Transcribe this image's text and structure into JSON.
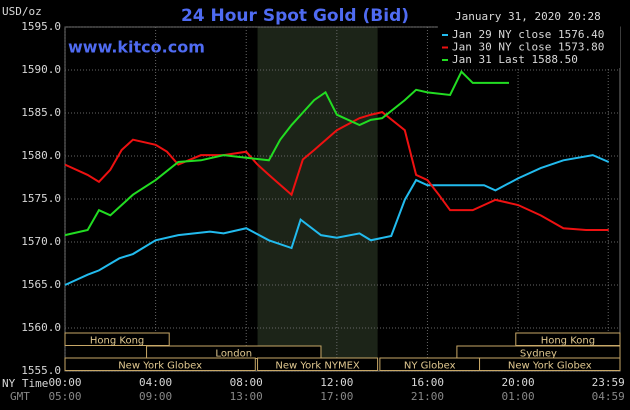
{
  "chart_data": {
    "type": "line",
    "title": "24 Hour Spot Gold (Bid)",
    "subtitle": "www.kitco.com",
    "timestamp": "January 31, 2020 20:28",
    "y_label": "USD/oz",
    "x_axis_labels": [
      "NY Time",
      "GMT"
    ],
    "xlim": [
      0,
      24.5
    ],
    "xticks": [
      {
        "value": 0,
        "label": "00:00"
      },
      {
        "value": 4,
        "label": "04:00"
      },
      {
        "value": 8,
        "label": "08:00"
      },
      {
        "value": 12,
        "label": "12:00"
      },
      {
        "value": 16,
        "label": "16:00"
      },
      {
        "value": 20,
        "label": "20:00"
      },
      {
        "value": 23.98,
        "label": "23:59"
      }
    ],
    "gmt_labels": [
      "05:00",
      "09:00",
      "13:00",
      "17:00",
      "21:00",
      "01:00",
      "04:59"
    ],
    "ylim": [
      1555,
      1595
    ],
    "yticks": [
      {
        "value": 1555,
        "label": "1555.0"
      },
      {
        "value": 1560,
        "label": "1560.0"
      },
      {
        "value": 1565,
        "label": "1565.0"
      },
      {
        "value": 1570,
        "label": "1570.0"
      },
      {
        "value": 1575,
        "label": "1575.0"
      },
      {
        "value": 1580,
        "label": "1580.0"
      },
      {
        "value": 1585,
        "label": "1585.0"
      },
      {
        "value": 1590,
        "label": "1590.0"
      },
      {
        "value": 1595,
        "label": "1595.0"
      }
    ],
    "grid": true,
    "series": [
      {
        "name": "Jan 29 NY close 1576.40",
        "color": "#22bbee",
        "x": [
          0,
          1,
          1.5,
          2.4,
          3,
          4,
          5,
          6.4,
          7,
          8,
          9,
          10,
          10.4,
          11.3,
          12,
          13,
          13.5,
          14.4,
          15,
          15.5,
          16,
          17,
          18.5,
          19,
          20,
          21,
          22,
          23.3,
          24
        ],
        "values": [
          1565.0,
          1566.2,
          1566.7,
          1568.1,
          1568.6,
          1570.2,
          1570.8,
          1571.2,
          1571.0,
          1571.6,
          1570.2,
          1569.3,
          1572.6,
          1570.8,
          1570.5,
          1571.0,
          1570.2,
          1570.7,
          1574.9,
          1577.2,
          1576.6,
          1576.6,
          1576.6,
          1576.0,
          1577.4,
          1578.6,
          1579.5,
          1580.1,
          1579.3
        ]
      },
      {
        "name": "Jan 30 NY close 1573.80",
        "color": "#ee1111",
        "x": [
          0,
          1,
          1.5,
          2,
          2.5,
          3,
          4,
          4.5,
          5,
          6,
          7,
          8,
          8.5,
          9,
          10,
          10.5,
          11,
          12,
          13,
          13.5,
          14,
          15,
          15.5,
          16,
          16.5,
          17,
          18,
          18.5,
          19,
          20,
          21,
          22,
          23,
          24
        ],
        "values": [
          1579.0,
          1577.8,
          1577.0,
          1578.4,
          1580.7,
          1581.9,
          1581.3,
          1580.5,
          1579.0,
          1580.1,
          1580.1,
          1580.5,
          1579.0,
          1577.8,
          1575.5,
          1579.6,
          1580.7,
          1583.0,
          1584.4,
          1584.8,
          1585.1,
          1583.0,
          1577.8,
          1577.2,
          1575.5,
          1573.7,
          1573.7,
          1574.3,
          1574.9,
          1574.3,
          1573.1,
          1571.6,
          1571.4,
          1571.4
        ]
      },
      {
        "name": "Jan 31 Last 1588.50",
        "color": "#22dd22",
        "x": [
          0,
          1,
          1.5,
          2,
          3,
          4,
          5,
          6,
          7,
          8,
          9,
          9.5,
          10,
          11,
          11.5,
          12,
          13,
          13.5,
          14,
          15,
          15.5,
          16,
          17,
          17.5,
          18,
          19.6
        ],
        "values": [
          1570.8,
          1571.4,
          1573.7,
          1573.1,
          1575.5,
          1577.2,
          1579.3,
          1579.5,
          1580.1,
          1579.8,
          1579.5,
          1581.9,
          1583.6,
          1586.5,
          1587.4,
          1584.8,
          1583.6,
          1584.2,
          1584.4,
          1586.5,
          1587.7,
          1587.4,
          1587.1,
          1589.8,
          1588.5,
          1588.5
        ]
      }
    ],
    "sessions": [
      {
        "label": "Hong Kong",
        "row": 0,
        "start": 0,
        "end": 4.6
      },
      {
        "label": "Hong Kong",
        "row": 0,
        "start": 19.9,
        "end": 24.5
      },
      {
        "label": "London",
        "row": 1,
        "start": 3.6,
        "end": 11.3
      },
      {
        "label": "Sydney",
        "row": 1,
        "start": 17.3,
        "end": 24.5
      },
      {
        "label": "New York Globex",
        "row": 2,
        "start": 0,
        "end": 8.4
      },
      {
        "label": "New York NYMEX",
        "row": 2,
        "start": 8.5,
        "end": 13.8,
        "highlight": true
      },
      {
        "label": "NY Globex",
        "row": 2,
        "start": 13.9,
        "end": 18.3
      },
      {
        "label": "New York Globex",
        "row": 2,
        "start": 18.3,
        "end": 24.5
      }
    ]
  }
}
